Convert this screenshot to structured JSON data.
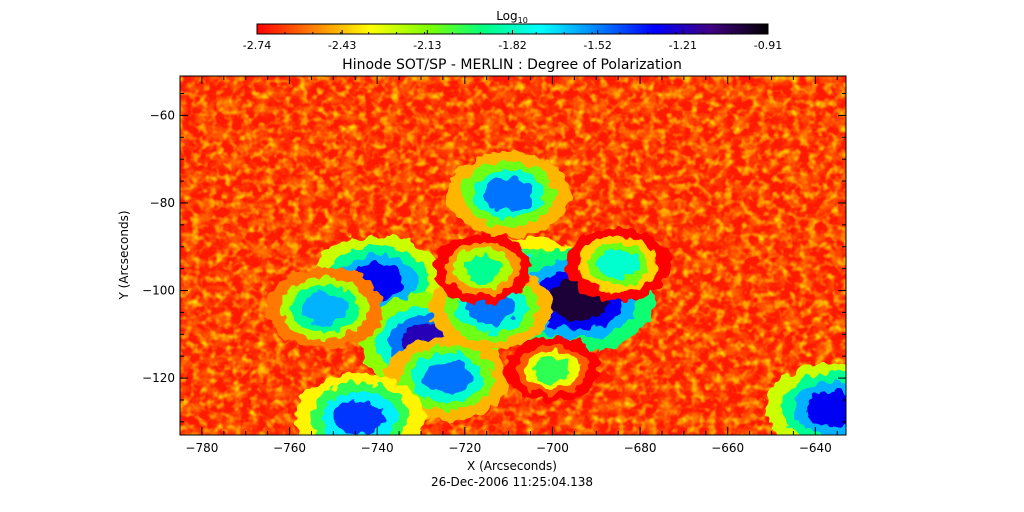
{
  "chart_data": {
    "type": "heatmap",
    "title": "Hinode SOT/SP - MERLIN : Degree of Polarization",
    "xlabel": "X (Arcseconds)",
    "ylabel": "Y (Arcseconds)",
    "timestamp": "26-Dec-2006 11:25:04.138",
    "xlim": [
      -785,
      -633
    ],
    "ylim": [
      -133,
      -51
    ],
    "x_ticks": [
      -780,
      -760,
      -740,
      -720,
      -700,
      -680,
      -660,
      -640
    ],
    "y_ticks": [
      -120,
      -100,
      -80,
      -60
    ],
    "colorbar": {
      "label_base": "Log",
      "label_sub": "10",
      "range": [
        -2.74,
        -0.91
      ],
      "tick_labels": [
        "-2.74",
        "-2.43",
        "-2.13",
        "-1.82",
        "-1.52",
        "-1.21",
        "-0.91"
      ],
      "colormap_stops": [
        "#ff0000",
        "#ff8000",
        "#ffff00",
        "#80ff00",
        "#00ff80",
        "#00ffff",
        "#0080ff",
        "#0000ff",
        "#400080",
        "#000000"
      ]
    },
    "features": [
      {
        "x": -740,
        "y": -98,
        "value": -1.3
      },
      {
        "x": -728,
        "y": -112,
        "value": -1.2
      },
      {
        "x": -724,
        "y": -120,
        "value": -1.5
      },
      {
        "x": -705,
        "y": -98,
        "value": -1.4
      },
      {
        "x": -694,
        "y": -102,
        "value": -1.0
      },
      {
        "x": -714,
        "y": -104,
        "value": -1.5
      },
      {
        "x": -752,
        "y": -104,
        "value": -1.6
      },
      {
        "x": -744,
        "y": -129,
        "value": -1.4
      },
      {
        "x": -710,
        "y": -78,
        "value": -1.5
      },
      {
        "x": -685,
        "y": -94,
        "value": -1.8
      },
      {
        "x": -636,
        "y": -127,
        "value": -1.3
      },
      {
        "x": -716,
        "y": -95,
        "value": -1.9
      },
      {
        "x": -700,
        "y": -118,
        "value": -2.0
      }
    ],
    "grid": false
  }
}
